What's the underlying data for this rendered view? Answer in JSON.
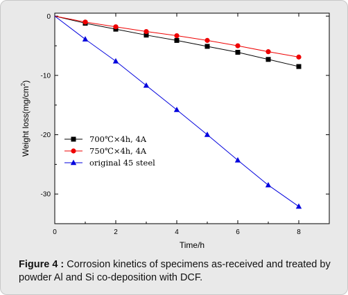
{
  "chart_data": {
    "type": "line",
    "x": [
      0,
      1,
      2,
      3,
      4,
      5,
      6,
      7,
      8
    ],
    "series": [
      {
        "name": "700℃×4h, 4A",
        "values": [
          0,
          -1.2,
          -2.2,
          -3.2,
          -4.1,
          -5.1,
          -6.1,
          -7.3,
          -8.5
        ],
        "color": "#000000",
        "marker": "square"
      },
      {
        "name": "750℃×4h, 4A",
        "values": [
          0,
          -1.0,
          -1.8,
          -2.6,
          -3.3,
          -4.1,
          -5.0,
          -6.0,
          -6.9
        ],
        "color": "#ee0000",
        "marker": "circle"
      },
      {
        "name": "original 45 steel",
        "values": [
          0,
          -3.9,
          -7.6,
          -11.7,
          -15.8,
          -20.0,
          -24.3,
          -28.5,
          -32.1
        ],
        "color": "#0000dd",
        "marker": "triangle"
      }
    ],
    "xlabel": "Time/h",
    "ylabel_parts": [
      "Weight loss(mg/cm",
      "2",
      ")"
    ],
    "xlim": [
      0,
      9.0
    ],
    "ylim": [
      -35,
      0.5
    ],
    "xticks": [
      0,
      2,
      4,
      6,
      8
    ],
    "yticks": [
      0,
      -10,
      -20,
      -30
    ],
    "legend_position": "left-middle",
    "grid": false
  },
  "caption": {
    "label": "Figure 4 :",
    "text": " Corrosion kinetics of specimens as-received and treated by powder Al and Si co-deposition with DCF."
  }
}
